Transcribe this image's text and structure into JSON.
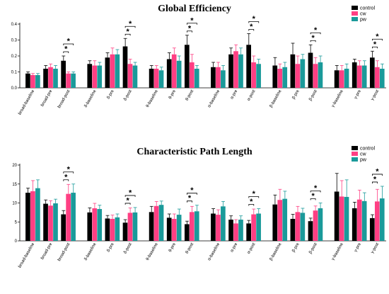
{
  "colors": {
    "control": "#000000",
    "cw": "#ff3f83",
    "pw": "#1a9a9a"
  },
  "chart_data": [
    {
      "type": "bar",
      "title": "Global Efficiency",
      "ylim": [
        0,
        0.4
      ],
      "yticks": [
        "0.0",
        "0.1",
        "0.2",
        "0.3",
        "0.4"
      ],
      "categories": [
        "broad-baseline",
        "broad-pre",
        "broad-post",
        "δ-baseline",
        "δ-pre",
        "δ-post",
        "θ-baseline",
        "θ-pre",
        "θ-post",
        "α-baseline",
        "α-pre",
        "α-post",
        "β-baseline",
        "β-pre",
        "β-post",
        "γ-baseline",
        "γ-pre",
        "γ-post"
      ],
      "legend": [
        "control",
        "cw",
        "pw"
      ],
      "legend_position": "top-right",
      "significance_marker": "*",
      "series": [
        {
          "name": "control",
          "values": [
            0.09,
            0.12,
            0.17,
            0.15,
            0.19,
            0.26,
            0.12,
            0.18,
            0.27,
            0.13,
            0.21,
            0.27,
            0.14,
            0.21,
            0.22,
            0.11,
            0.16,
            0.19
          ],
          "errors": [
            0.01,
            0.02,
            0.03,
            0.02,
            0.03,
            0.05,
            0.02,
            0.04,
            0.06,
            0.03,
            0.04,
            0.07,
            0.05,
            0.07,
            0.05,
            0.03,
            0.02,
            0.04
          ]
        },
        {
          "name": "cw",
          "values": [
            0.08,
            0.13,
            0.09,
            0.14,
            0.21,
            0.15,
            0.12,
            0.21,
            0.16,
            0.13,
            0.23,
            0.16,
            0.12,
            0.15,
            0.15,
            0.11,
            0.14,
            0.13
          ],
          "errors": [
            0.01,
            0.02,
            0.01,
            0.03,
            0.04,
            0.03,
            0.02,
            0.04,
            0.05,
            0.03,
            0.04,
            0.04,
            0.03,
            0.05,
            0.04,
            0.03,
            0.03,
            0.04
          ]
        },
        {
          "name": "pw",
          "values": [
            0.08,
            0.12,
            0.09,
            0.14,
            0.21,
            0.14,
            0.11,
            0.17,
            0.12,
            0.11,
            0.21,
            0.15,
            0.13,
            0.18,
            0.16,
            0.12,
            0.14,
            0.12
          ],
          "errors": [
            0.01,
            0.02,
            0.01,
            0.02,
            0.03,
            0.02,
            0.02,
            0.03,
            0.02,
            0.03,
            0.04,
            0.03,
            0.03,
            0.03,
            0.04,
            0.03,
            0.03,
            0.03
          ]
        }
      ],
      "significance": [
        2,
        5,
        8,
        11,
        14,
        17
      ]
    },
    {
      "type": "bar",
      "title": "Characteristic Path Length",
      "ylim": [
        0,
        20
      ],
      "yticks": [
        "0",
        "5",
        "10",
        "15",
        "20"
      ],
      "categories": [
        "broad-baseline",
        "broad-pre",
        "broad-post",
        "δ-baseline",
        "δ-pre",
        "δ-post",
        "θ-baseline",
        "θ-pre",
        "θ-post",
        "α-baseline",
        "α-pre",
        "α-post",
        "β-baseline",
        "β-pre",
        "β-post",
        "γ-baseline",
        "γ-pre",
        "γ-post"
      ],
      "legend": [
        "control",
        "cw",
        "pw"
      ],
      "legend_position": "top-right",
      "significance_marker": "*",
      "series": [
        {
          "name": "control",
          "values": [
            12.7,
            9.8,
            7.0,
            7.5,
            5.9,
            4.8,
            7.6,
            6.1,
            4.4,
            7.2,
            5.6,
            4.6,
            9.6,
            5.8,
            5.2,
            13.0,
            8.6,
            6.0
          ],
          "errors": [
            1.2,
            1.0,
            1.0,
            1.2,
            0.8,
            0.8,
            1.5,
            1.0,
            0.8,
            1.3,
            1.0,
            0.8,
            2.5,
            1.2,
            0.8,
            4.8,
            1.6,
            0.9
          ]
        },
        {
          "name": "cw",
          "values": [
            13.1,
            9.3,
            12.4,
            8.6,
            5.8,
            7.4,
            9.2,
            5.8,
            7.6,
            6.9,
            4.6,
            7.0,
            10.8,
            7.6,
            8.0,
            11.7,
            10.9,
            10.4
          ],
          "errors": [
            2.8,
            1.3,
            2.5,
            1.3,
            1.0,
            1.3,
            1.2,
            1.3,
            1.5,
            1.3,
            1.0,
            1.4,
            2.8,
            1.5,
            1.2,
            4.2,
            2.5,
            3.2
          ]
        },
        {
          "name": "pw",
          "values": [
            13.9,
            9.9,
            12.7,
            8.4,
            6.2,
            7.5,
            9.5,
            6.9,
            7.8,
            9.1,
            5.6,
            7.2,
            11.1,
            7.4,
            8.6,
            11.6,
            10.5,
            11.2
          ],
          "errors": [
            2.2,
            1.1,
            2.3,
            1.0,
            0.9,
            1.3,
            1.0,
            1.5,
            1.6,
            1.3,
            1.0,
            1.3,
            2.0,
            1.2,
            1.4,
            4.5,
            2.2,
            3.2
          ]
        }
      ],
      "significance": [
        2,
        5,
        8,
        11,
        14,
        17
      ]
    }
  ]
}
